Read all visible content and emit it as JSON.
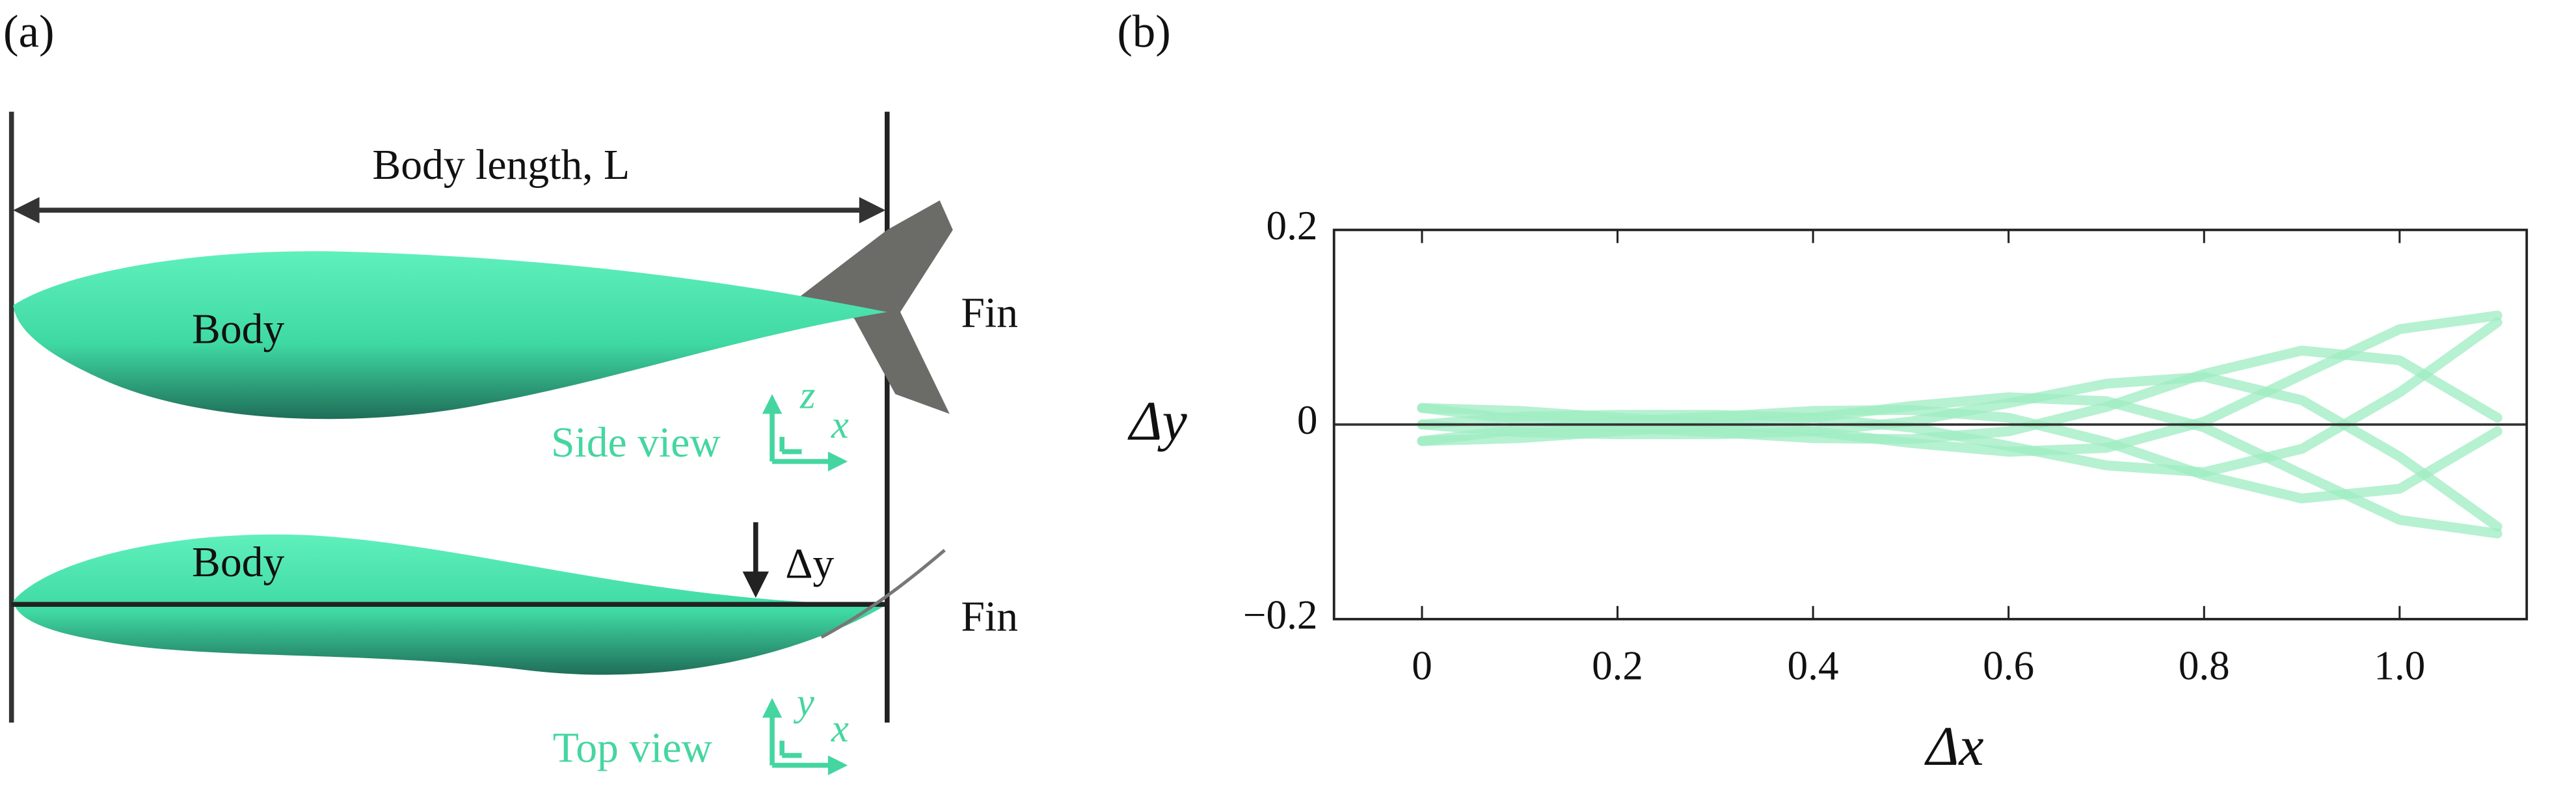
{
  "panel_a": {
    "label": "(a)",
    "length_label": "Body length, L",
    "side_view": {
      "body": "Body",
      "fin": "Fin",
      "view": "Side view",
      "axis_up": "z",
      "axis_right": "x"
    },
    "top_view": {
      "body": "Body",
      "fin": "Fin",
      "offset": "Δy",
      "view": "Top view",
      "axis_up": "y",
      "axis_right": "x"
    }
  },
  "chart_data": {
    "type": "line",
    "panel_label": "(b)",
    "x": [
      0,
      0.1,
      0.2,
      0.3,
      0.4,
      0.5,
      0.6,
      0.7,
      0.8,
      0.9,
      1.0,
      1.1
    ],
    "series": [
      {
        "color": "#9eecc2",
        "values": [
          0,
          0.008,
          0.01,
          0.01,
          0.007,
          -0.003,
          -0.022,
          -0.042,
          -0.049,
          -0.025,
          0.033,
          0.105
        ]
      },
      {
        "color": "#9eecc2",
        "values": [
          -0.017,
          -0.005,
          0.003,
          0.008,
          0.014,
          0.015,
          0.007,
          -0.018,
          -0.052,
          -0.076,
          -0.066,
          -0.007
        ]
      },
      {
        "color": "#9eecc2",
        "values": [
          -0.017,
          -0.014,
          -0.007,
          -0.001,
          0.007,
          0.019,
          0.028,
          0.024,
          -0.003,
          -0.051,
          -0.098,
          -0.112
        ]
      },
      {
        "color": "#9eecc2",
        "values": [
          0,
          -0.008,
          -0.01,
          -0.01,
          -0.007,
          0.003,
          0.022,
          0.042,
          0.049,
          0.025,
          -0.033,
          -0.105
        ]
      },
      {
        "color": "#9eecc2",
        "values": [
          0.017,
          0.005,
          -0.003,
          -0.008,
          -0.014,
          -0.015,
          -0.007,
          0.018,
          0.052,
          0.076,
          0.066,
          0.007
        ]
      },
      {
        "color": "#9eecc2",
        "values": [
          0.017,
          0.014,
          0.007,
          0.001,
          -0.007,
          -0.019,
          -0.028,
          -0.024,
          0.003,
          0.051,
          0.098,
          0.112
        ]
      }
    ],
    "xlim": [
      -0.09,
      1.13
    ],
    "ylim": [
      -0.2,
      0.2
    ],
    "xticks": [
      0,
      0.2,
      0.4,
      0.6,
      0.8,
      {
        "value": 1,
        "label": "1.0"
      }
    ],
    "yticks": [
      {
        "value": -0.2,
        "label": "−0.2"
      },
      0,
      0.2
    ],
    "xlabel": "Δx",
    "ylabel": "Δy",
    "zero_line": true
  }
}
